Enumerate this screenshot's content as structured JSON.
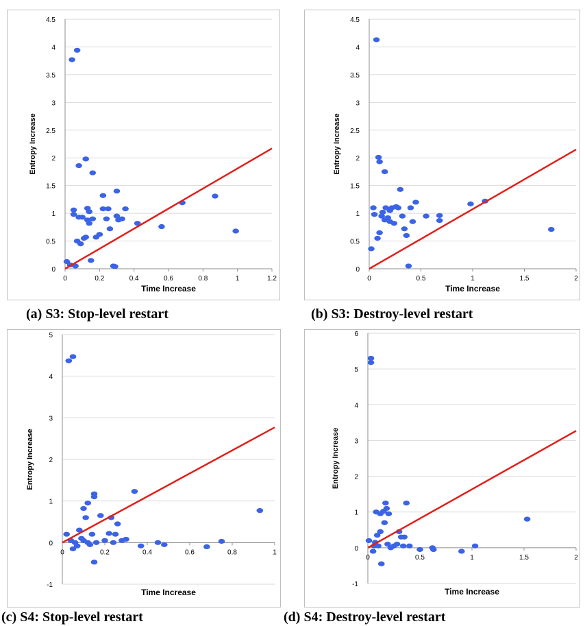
{
  "colors": {
    "points": "#3b63e6",
    "fit_line": "#e0201b",
    "grid": "#d9d9d9",
    "axis": "#8c8c8c"
  },
  "chart_data": [
    {
      "type": "scatter",
      "caption": "(a) S3: Stop-level restart",
      "xlabel": "Time Increase",
      "ylabel": "Entropy Increase",
      "xlim": [
        0,
        1.2
      ],
      "ylim": [
        0,
        4.5
      ],
      "xticks": [
        "0",
        "0.2",
        "0.4",
        "0.6",
        "0.8",
        "1",
        "1.2"
      ],
      "yticks": [
        "0",
        "0.5",
        "1",
        "1.5",
        "2",
        "2.5",
        "3",
        "3.5",
        "4",
        "4.5"
      ],
      "grid": true,
      "legend": "none",
      "fit_line": {
        "x": [
          0,
          1.2
        ],
        "y": [
          0,
          2.17
        ]
      },
      "points": [
        {
          "x": 0.01,
          "y": 0.13
        },
        {
          "x": 0.04,
          "y": 3.77
        },
        {
          "x": 0.07,
          "y": 3.94
        },
        {
          "x": 0.05,
          "y": 0.98
        },
        {
          "x": 0.05,
          "y": 1.06
        },
        {
          "x": 0.03,
          "y": 0.07
        },
        {
          "x": 0.06,
          "y": 0.05
        },
        {
          "x": 0.07,
          "y": 0.5
        },
        {
          "x": 0.08,
          "y": 0.93
        },
        {
          "x": 0.08,
          "y": 1.86
        },
        {
          "x": 0.09,
          "y": 0.45
        },
        {
          "x": 0.1,
          "y": 0.93
        },
        {
          "x": 0.11,
          "y": 0.55
        },
        {
          "x": 0.12,
          "y": 0.57
        },
        {
          "x": 0.12,
          "y": 1.98
        },
        {
          "x": 0.13,
          "y": 1.09
        },
        {
          "x": 0.13,
          "y": 0.88
        },
        {
          "x": 0.14,
          "y": 0.82
        },
        {
          "x": 0.14,
          "y": 1.03
        },
        {
          "x": 0.15,
          "y": 0.15
        },
        {
          "x": 0.16,
          "y": 1.73
        },
        {
          "x": 0.16,
          "y": 0.9
        },
        {
          "x": 0.18,
          "y": 0.57
        },
        {
          "x": 0.2,
          "y": 0.62
        },
        {
          "x": 0.22,
          "y": 1.08
        },
        {
          "x": 0.22,
          "y": 1.32
        },
        {
          "x": 0.24,
          "y": 0.9
        },
        {
          "x": 0.25,
          "y": 1.08
        },
        {
          "x": 0.26,
          "y": 0.72
        },
        {
          "x": 0.28,
          "y": 0.05
        },
        {
          "x": 0.29,
          "y": 0.04
        },
        {
          "x": 0.3,
          "y": 0.95
        },
        {
          "x": 0.3,
          "y": 1.4
        },
        {
          "x": 0.31,
          "y": 0.88
        },
        {
          "x": 0.33,
          "y": 0.9
        },
        {
          "x": 0.35,
          "y": 1.08
        },
        {
          "x": 0.42,
          "y": 0.82
        },
        {
          "x": 0.56,
          "y": 0.76
        },
        {
          "x": 0.68,
          "y": 1.19
        },
        {
          "x": 0.87,
          "y": 1.31
        },
        {
          "x": 0.99,
          "y": 0.68
        }
      ]
    },
    {
      "type": "scatter",
      "caption": "(b) S3: Destroy-level restart",
      "xlabel": "Time Increase",
      "ylabel": "Entropy Increase",
      "xlim": [
        0,
        2
      ],
      "ylim": [
        0,
        4.5
      ],
      "xticks": [
        "0",
        "0.5",
        "1",
        "1.5",
        "2"
      ],
      "yticks": [
        "0",
        "0.5",
        "1",
        "1.5",
        "2",
        "2.5",
        "3",
        "3.5",
        "4",
        "4.5"
      ],
      "grid": true,
      "legend": "none",
      "fit_line": {
        "x": [
          0,
          2
        ],
        "y": [
          0,
          2.15
        ]
      },
      "points": [
        {
          "x": 0.02,
          "y": 0.36
        },
        {
          "x": 0.04,
          "y": 1.1
        },
        {
          "x": 0.05,
          "y": 0.98
        },
        {
          "x": 0.07,
          "y": 4.13
        },
        {
          "x": 0.08,
          "y": 0.55
        },
        {
          "x": 0.09,
          "y": 2.01
        },
        {
          "x": 0.1,
          "y": 1.93
        },
        {
          "x": 0.1,
          "y": 0.65
        },
        {
          "x": 0.12,
          "y": 0.95
        },
        {
          "x": 0.13,
          "y": 1.02
        },
        {
          "x": 0.15,
          "y": 0.88
        },
        {
          "x": 0.15,
          "y": 1.75
        },
        {
          "x": 0.16,
          "y": 1.1
        },
        {
          "x": 0.18,
          "y": 0.92
        },
        {
          "x": 0.2,
          "y": 0.85
        },
        {
          "x": 0.2,
          "y": 1.05
        },
        {
          "x": 0.22,
          "y": 1.1
        },
        {
          "x": 0.24,
          "y": 0.82
        },
        {
          "x": 0.26,
          "y": 1.12
        },
        {
          "x": 0.28,
          "y": 1.1
        },
        {
          "x": 0.3,
          "y": 1.43
        },
        {
          "x": 0.32,
          "y": 0.95
        },
        {
          "x": 0.34,
          "y": 0.72
        },
        {
          "x": 0.36,
          "y": 0.6
        },
        {
          "x": 0.38,
          "y": 0.05
        },
        {
          "x": 0.4,
          "y": 1.1
        },
        {
          "x": 0.42,
          "y": 0.85
        },
        {
          "x": 0.45,
          "y": 1.2
        },
        {
          "x": 0.55,
          "y": 0.95
        },
        {
          "x": 0.68,
          "y": 0.87
        },
        {
          "x": 0.68,
          "y": 0.96
        },
        {
          "x": 0.98,
          "y": 1.17
        },
        {
          "x": 1.12,
          "y": 1.22
        },
        {
          "x": 1.76,
          "y": 0.71
        }
      ]
    },
    {
      "type": "scatter",
      "caption": "(c) S4: Stop-level restart",
      "xlabel": "Time Increase",
      "ylabel": "Entropy Increase",
      "xlim": [
        0,
        1
      ],
      "ylim": [
        -1,
        5
      ],
      "xticks": [
        "0",
        "0.2",
        "0.4",
        "0.6",
        "0.8",
        "1"
      ],
      "yticks": [
        "-1",
        "0",
        "1",
        "2",
        "3",
        "4",
        "5"
      ],
      "grid": true,
      "legend": "none",
      "fit_line": {
        "x": [
          0,
          1
        ],
        "y": [
          0,
          2.77
        ]
      },
      "points": [
        {
          "x": 0.02,
          "y": 0.2
        },
        {
          "x": 0.03,
          "y": 4.37
        },
        {
          "x": 0.05,
          "y": 4.47
        },
        {
          "x": 0.04,
          "y": 0.05
        },
        {
          "x": 0.05,
          "y": -0.15
        },
        {
          "x": 0.06,
          "y": 0.0
        },
        {
          "x": 0.07,
          "y": -0.08
        },
        {
          "x": 0.08,
          "y": 0.3
        },
        {
          "x": 0.09,
          "y": 0.1
        },
        {
          "x": 0.1,
          "y": 0.82
        },
        {
          "x": 0.1,
          "y": 0.05
        },
        {
          "x": 0.11,
          "y": 0.6
        },
        {
          "x": 0.12,
          "y": 0.95
        },
        {
          "x": 0.12,
          "y": 0.0
        },
        {
          "x": 0.13,
          "y": -0.05
        },
        {
          "x": 0.14,
          "y": 0.2
        },
        {
          "x": 0.15,
          "y": 1.1
        },
        {
          "x": 0.15,
          "y": 1.17
        },
        {
          "x": 0.15,
          "y": -0.47
        },
        {
          "x": 0.16,
          "y": 0.0
        },
        {
          "x": 0.18,
          "y": 0.65
        },
        {
          "x": 0.2,
          "y": 0.05
        },
        {
          "x": 0.22,
          "y": 0.22
        },
        {
          "x": 0.23,
          "y": 0.6
        },
        {
          "x": 0.24,
          "y": 0.0
        },
        {
          "x": 0.25,
          "y": 0.2
        },
        {
          "x": 0.26,
          "y": 0.45
        },
        {
          "x": 0.28,
          "y": 0.05
        },
        {
          "x": 0.3,
          "y": 0.08
        },
        {
          "x": 0.34,
          "y": 1.23
        },
        {
          "x": 0.37,
          "y": -0.08
        },
        {
          "x": 0.45,
          "y": 0.0
        },
        {
          "x": 0.48,
          "y": -0.05
        },
        {
          "x": 0.68,
          "y": -0.1
        },
        {
          "x": 0.75,
          "y": 0.03
        },
        {
          "x": 0.93,
          "y": 0.77
        }
      ]
    },
    {
      "type": "scatter",
      "caption": "(d) S4: Destroy-level restart",
      "xlabel": "Time Increase",
      "ylabel": "Entropy Increase",
      "xlim": [
        0,
        2
      ],
      "ylim": [
        -1,
        6
      ],
      "xticks": [
        "0",
        "0.5",
        "1",
        "1.5",
        "2"
      ],
      "yticks": [
        "-1",
        "0",
        "1",
        "2",
        "3",
        "4",
        "5",
        "6"
      ],
      "grid": true,
      "legend": "none",
      "fit_line": {
        "x": [
          0,
          2
        ],
        "y": [
          0,
          3.27
        ]
      },
      "points": [
        {
          "x": 0.01,
          "y": 0.2
        },
        {
          "x": 0.03,
          "y": 5.3
        },
        {
          "x": 0.03,
          "y": 5.18
        },
        {
          "x": 0.05,
          "y": -0.1
        },
        {
          "x": 0.06,
          "y": 0.05
        },
        {
          "x": 0.07,
          "y": 0.15
        },
        {
          "x": 0.08,
          "y": 1.0
        },
        {
          "x": 0.09,
          "y": 0.35
        },
        {
          "x": 0.1,
          "y": 0.05
        },
        {
          "x": 0.12,
          "y": 0.95
        },
        {
          "x": 0.12,
          "y": 0.45
        },
        {
          "x": 0.13,
          "y": -0.45
        },
        {
          "x": 0.15,
          "y": 1.02
        },
        {
          "x": 0.16,
          "y": 0.7
        },
        {
          "x": 0.17,
          "y": 1.25
        },
        {
          "x": 0.18,
          "y": 1.1
        },
        {
          "x": 0.19,
          "y": 0.1
        },
        {
          "x": 0.2,
          "y": 0.95
        },
        {
          "x": 0.22,
          "y": 0.0
        },
        {
          "x": 0.25,
          "y": 0.05
        },
        {
          "x": 0.28,
          "y": 0.1
        },
        {
          "x": 0.3,
          "y": 0.45
        },
        {
          "x": 0.32,
          "y": 0.3
        },
        {
          "x": 0.34,
          "y": 0.05
        },
        {
          "x": 0.35,
          "y": 0.3
        },
        {
          "x": 0.37,
          "y": 1.25
        },
        {
          "x": 0.4,
          "y": 0.05
        },
        {
          "x": 0.5,
          "y": -0.05
        },
        {
          "x": 0.62,
          "y": 0.0
        },
        {
          "x": 0.63,
          "y": -0.05
        },
        {
          "x": 0.9,
          "y": -0.1
        },
        {
          "x": 1.03,
          "y": 0.05
        },
        {
          "x": 1.53,
          "y": 0.8
        }
      ]
    }
  ]
}
